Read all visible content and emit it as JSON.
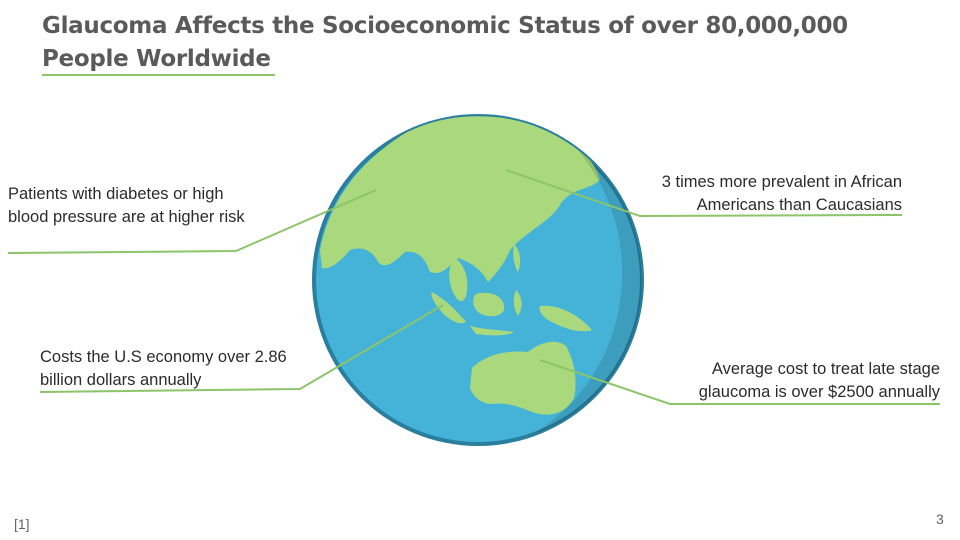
{
  "slide": {
    "title": "Glaucoma Affects the Socioeconomic Status of over 80,000,000 People Worldwide",
    "callouts": {
      "diabetes": "Patients with diabetes or high blood pressure are at higher risk",
      "prevalence": "3 times more prevalent in African Americans than Caucasians",
      "economy": "Costs the U.S economy over 2.86 billion dollars annually",
      "cost": "Average cost to treat late stage glaucoma is over $2500 annually"
    },
    "reference": "[1]",
    "page_number": "3"
  },
  "colors": {
    "accent_line": "#8cc46a",
    "ocean": "#45b3d8",
    "land": "#a9d97c",
    "rim": "#2a7e9e"
  }
}
